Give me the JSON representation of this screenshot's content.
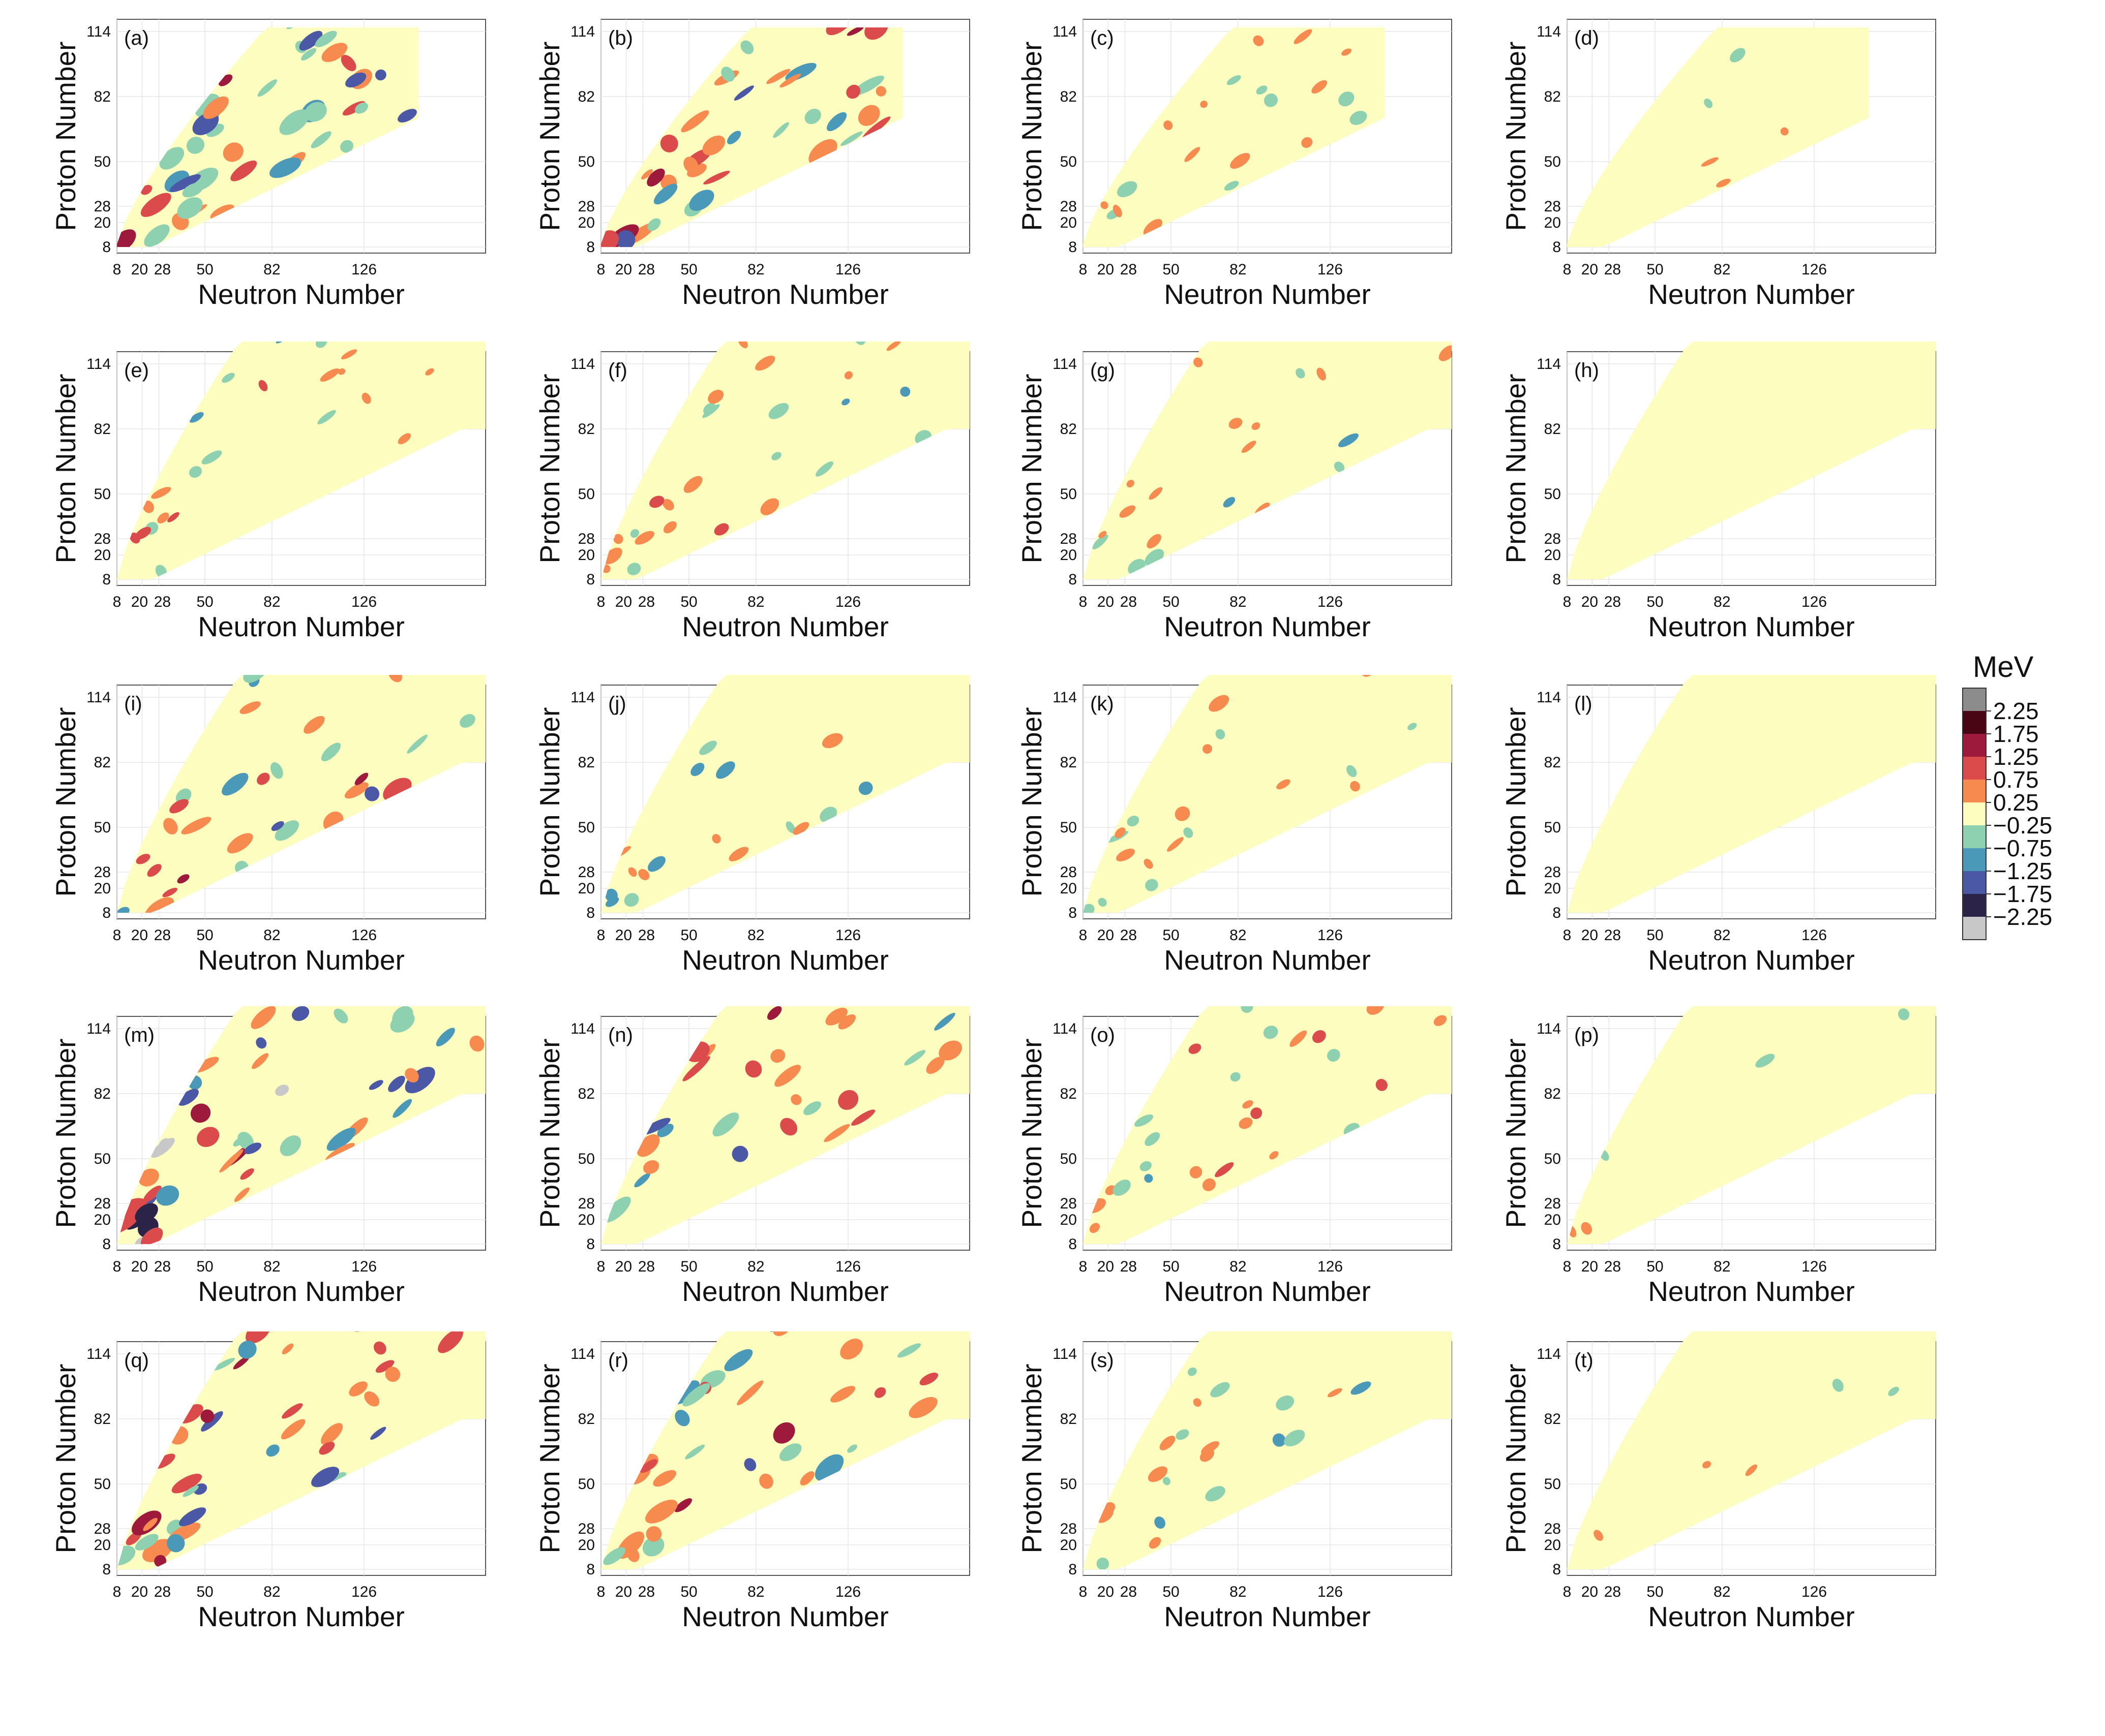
{
  "figure": {
    "xlabel": "Neutron Number",
    "ylabel": "Proton Number",
    "x_ticks": [
      8,
      20,
      28,
      50,
      82,
      126
    ],
    "x_tick_labels": [
      "8",
      "20",
      "28",
      "50",
      "82",
      "126"
    ],
    "y_ticks": [
      8,
      20,
      28,
      50,
      82,
      114
    ],
    "y_tick_labels": [
      "8",
      "20",
      "28",
      "50",
      "82",
      "114"
    ],
    "colorbar": {
      "title": "MeV",
      "levels": [
        2.25,
        1.75,
        1.25,
        0.75,
        0.25,
        -0.25,
        -0.75,
        -1.25,
        -1.75,
        -2.25
      ],
      "labels": [
        "2.25",
        "1.75",
        "1.25",
        "0.75",
        "0.25",
        "−0.25",
        "−0.75",
        "−1.25",
        "−1.75",
        "−2.25"
      ],
      "colors": [
        "#8c8c8c",
        "#4a0514",
        "#9e1a3c",
        "#dc4b4b",
        "#f78a4e",
        "#fcfdbf",
        "#8ed1b1",
        "#4b99b8",
        "#4a58a5",
        "#2c2448",
        "#c8c8c8"
      ]
    }
  },
  "chart_data": [
    {
      "panel": "(a)",
      "type": "heatmap",
      "n_range": [
        8,
        184
      ],
      "z_range": [
        8,
        120
      ],
      "deviation_level": "large"
    },
    {
      "panel": "(b)",
      "type": "heatmap",
      "n_range": [
        8,
        184
      ],
      "z_range": [
        8,
        120
      ],
      "deviation_level": "large"
    },
    {
      "panel": "(c)",
      "type": "heatmap",
      "n_range": [
        8,
        184
      ],
      "z_range": [
        8,
        120
      ],
      "deviation_level": "small"
    },
    {
      "panel": "(d)",
      "type": "heatmap",
      "n_range": [
        8,
        184
      ],
      "z_range": [
        8,
        120
      ],
      "deviation_level": "minimal"
    },
    {
      "panel": "(e)",
      "type": "heatmap",
      "n_range": [
        8,
        184
      ],
      "z_range": [
        8,
        120
      ],
      "deviation_level": "medium"
    },
    {
      "panel": "(f)",
      "type": "heatmap",
      "n_range": [
        8,
        184
      ],
      "z_range": [
        8,
        120
      ],
      "deviation_level": "medium"
    },
    {
      "panel": "(g)",
      "type": "heatmap",
      "n_range": [
        8,
        184
      ],
      "z_range": [
        8,
        120
      ],
      "deviation_level": "small"
    },
    {
      "panel": "(h)",
      "type": "heatmap",
      "n_range": [
        8,
        184
      ],
      "z_range": [
        8,
        120
      ],
      "deviation_level": "none"
    },
    {
      "panel": "(i)",
      "type": "heatmap",
      "n_range": [
        8,
        184
      ],
      "z_range": [
        8,
        120
      ],
      "deviation_level": "large"
    },
    {
      "panel": "(j)",
      "type": "heatmap",
      "n_range": [
        8,
        184
      ],
      "z_range": [
        8,
        120
      ],
      "deviation_level": "medium"
    },
    {
      "panel": "(k)",
      "type": "heatmap",
      "n_range": [
        8,
        184
      ],
      "z_range": [
        8,
        120
      ],
      "deviation_level": "small"
    },
    {
      "panel": "(l)",
      "type": "heatmap",
      "n_range": [
        8,
        184
      ],
      "z_range": [
        8,
        120
      ],
      "deviation_level": "none"
    },
    {
      "panel": "(m)",
      "type": "heatmap",
      "n_range": [
        8,
        184
      ],
      "z_range": [
        8,
        120
      ],
      "deviation_level": "very large"
    },
    {
      "panel": "(n)",
      "type": "heatmap",
      "n_range": [
        8,
        184
      ],
      "z_range": [
        8,
        120
      ],
      "deviation_level": "large"
    },
    {
      "panel": "(o)",
      "type": "heatmap",
      "n_range": [
        8,
        184
      ],
      "z_range": [
        8,
        120
      ],
      "deviation_level": "medium"
    },
    {
      "panel": "(p)",
      "type": "heatmap",
      "n_range": [
        8,
        184
      ],
      "z_range": [
        8,
        120
      ],
      "deviation_level": "minimal"
    },
    {
      "panel": "(q)",
      "type": "heatmap",
      "n_range": [
        8,
        184
      ],
      "z_range": [
        8,
        120
      ],
      "deviation_level": "large"
    },
    {
      "panel": "(r)",
      "type": "heatmap",
      "n_range": [
        8,
        184
      ],
      "z_range": [
        8,
        120
      ],
      "deviation_level": "large"
    },
    {
      "panel": "(s)",
      "type": "heatmap",
      "n_range": [
        8,
        184
      ],
      "z_range": [
        8,
        120
      ],
      "deviation_level": "small"
    },
    {
      "panel": "(t)",
      "type": "heatmap",
      "n_range": [
        8,
        184
      ],
      "z_range": [
        8,
        120
      ],
      "deviation_level": "minimal"
    }
  ]
}
